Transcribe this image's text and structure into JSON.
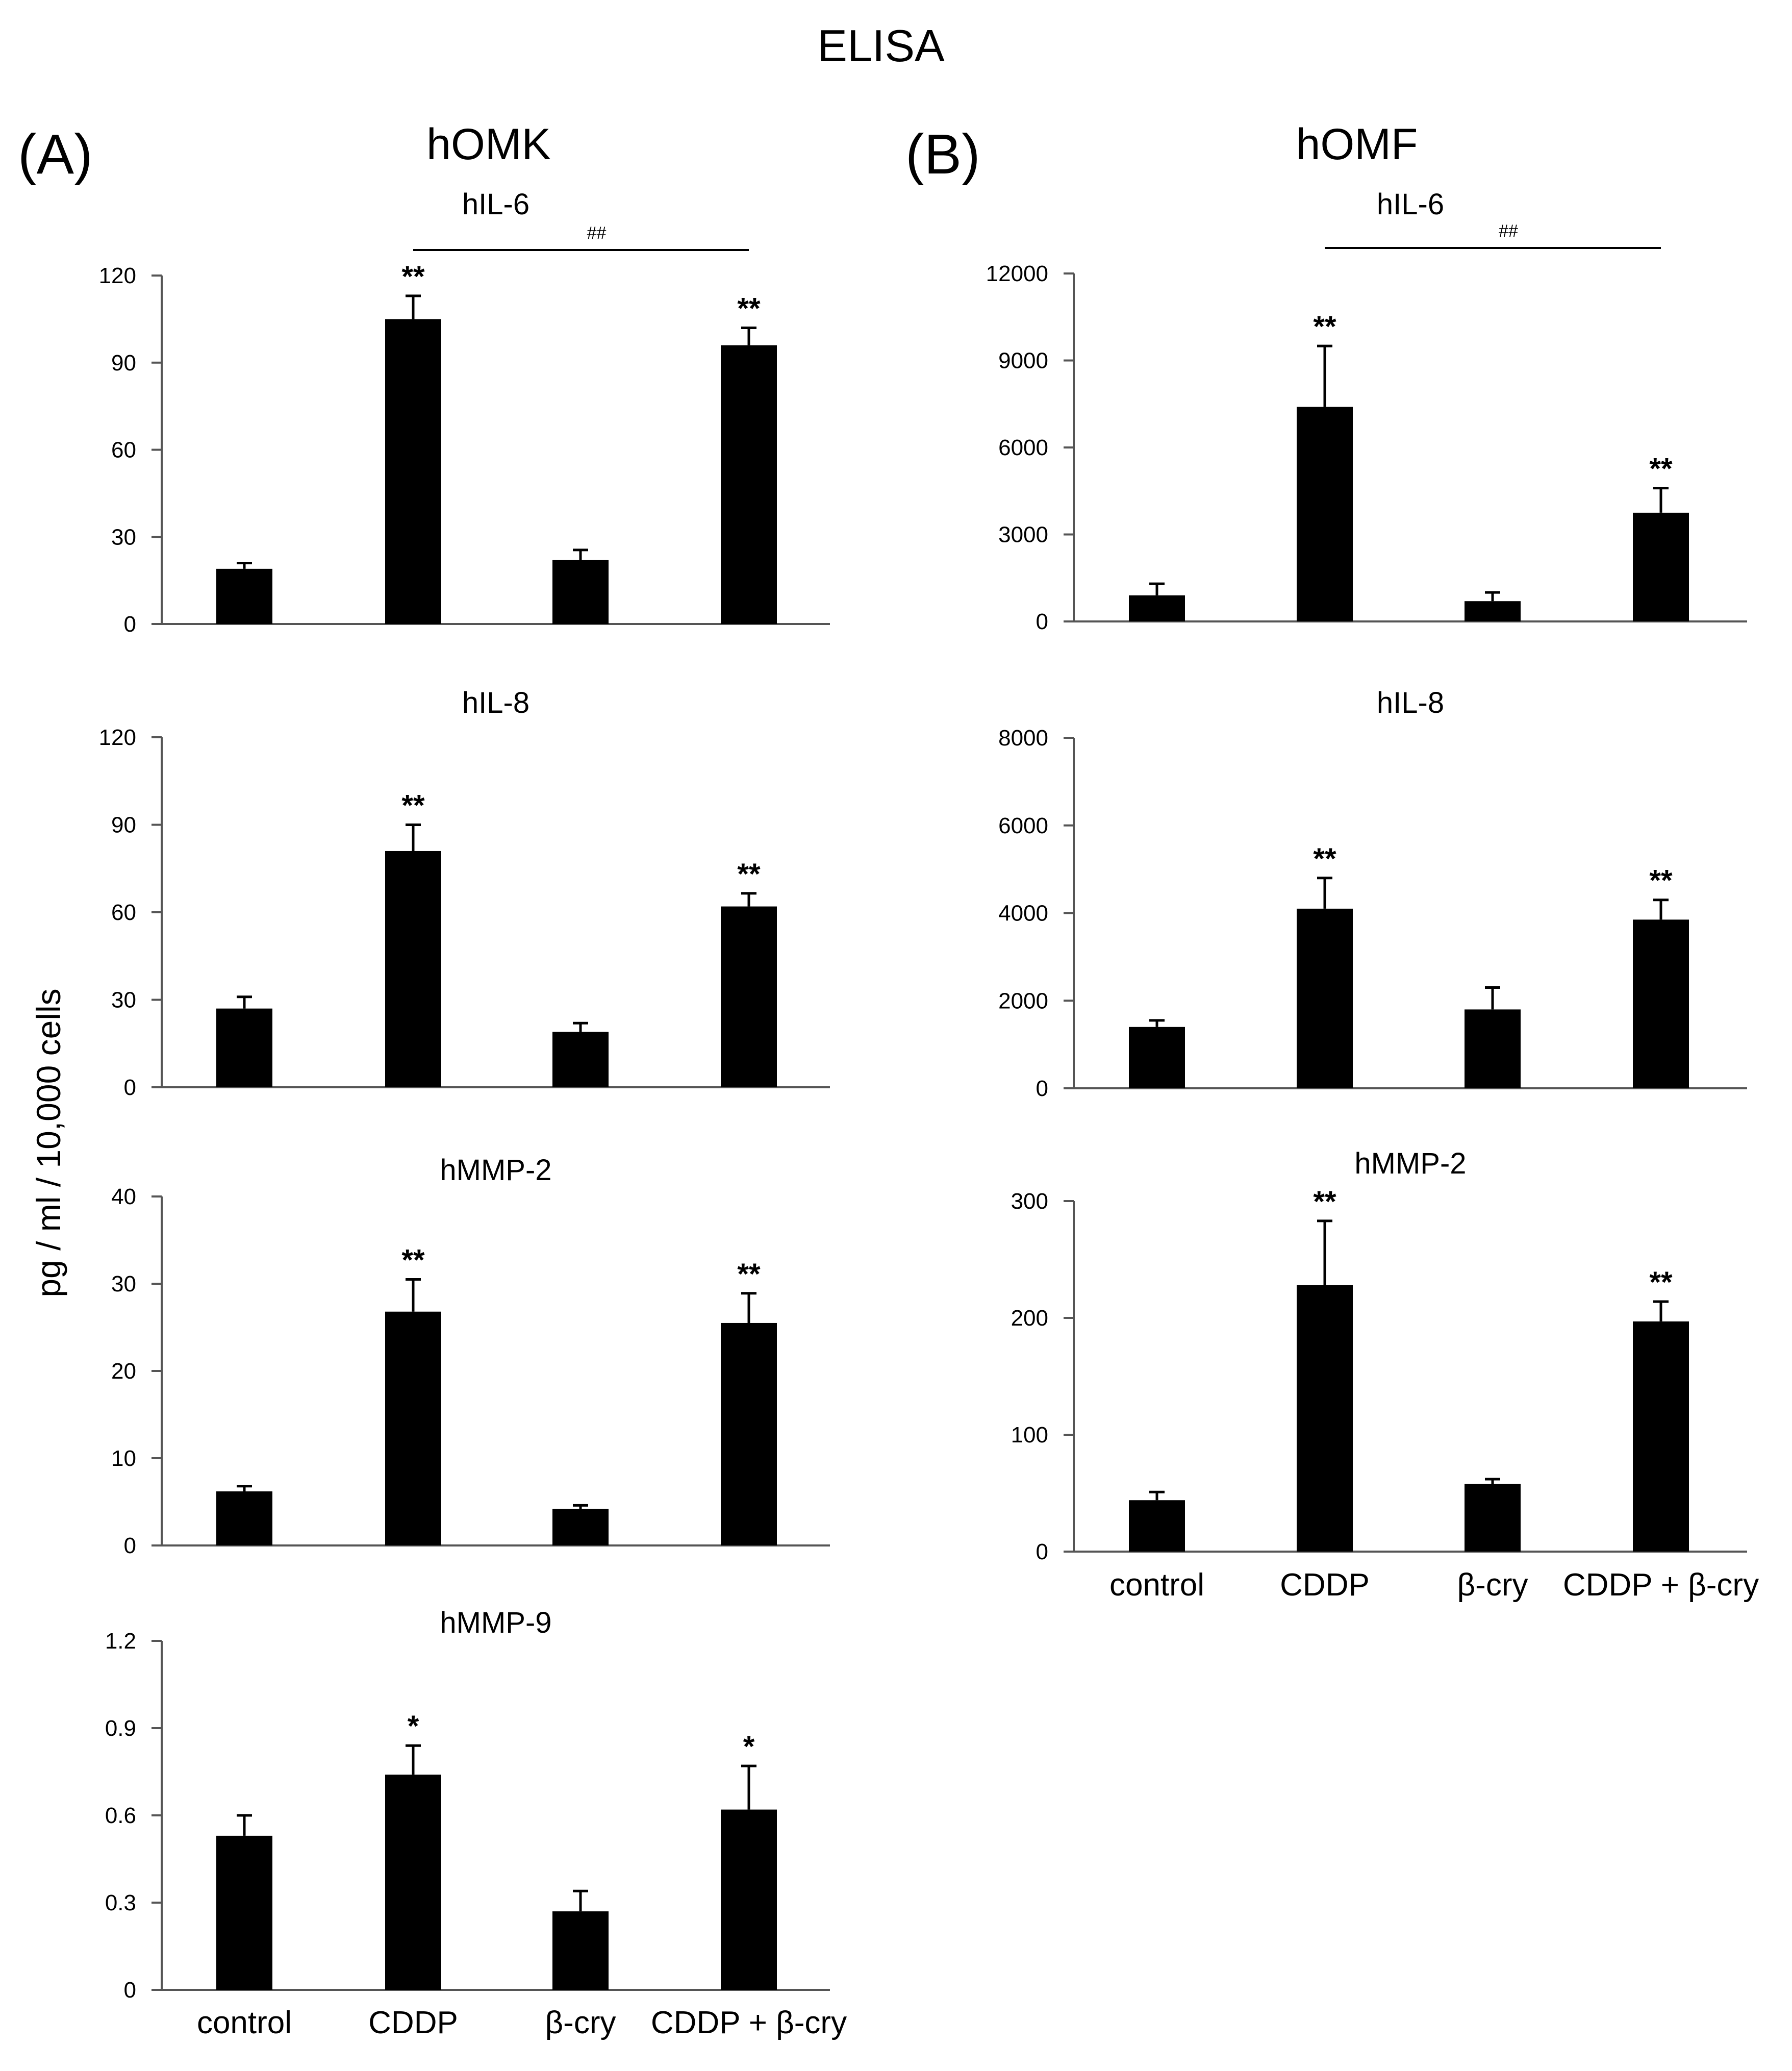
{
  "figure": {
    "title": "ELISA",
    "panel_a": {
      "label": "(A)",
      "cell": "hOMK"
    },
    "panel_b": {
      "label": "(B)",
      "cell": "hOMF"
    },
    "ylabel": "pg / ml / 10,000 cells",
    "bar_color": "#000000"
  },
  "chart_data": [
    {
      "id": "a-il6",
      "type": "bar",
      "panel": "hOMK",
      "title": "hIL-6",
      "categories": [
        "control",
        "CDDP",
        "β-cry",
        "CDDP + β-cry"
      ],
      "values": [
        19,
        105,
        22,
        96
      ],
      "errors": [
        2,
        8,
        3.5,
        6
      ],
      "significance": [
        "",
        "**",
        "",
        "**"
      ],
      "comparison": {
        "from": 1,
        "to": 3,
        "label": "##"
      },
      "ylim": [
        0,
        120
      ],
      "yticks": [
        0,
        30,
        60,
        90,
        120
      ],
      "ytick_labels": [
        "0",
        "30",
        "60",
        "90",
        "120"
      ],
      "xlabel": "",
      "ylabel": "pg / ml / 10,000 cells",
      "show_categories": false
    },
    {
      "id": "a-il8",
      "type": "bar",
      "panel": "hOMK",
      "title": "hIL-8",
      "categories": [
        "control",
        "CDDP",
        "β-cry",
        "CDDP + β-cry"
      ],
      "values": [
        27,
        81,
        19,
        62
      ],
      "errors": [
        4,
        9,
        3,
        4.5
      ],
      "significance": [
        "",
        "**",
        "",
        "**"
      ],
      "ylim": [
        0,
        120
      ],
      "yticks": [
        0,
        30,
        60,
        90,
        120
      ],
      "ytick_labels": [
        "0",
        "30",
        "60",
        "90",
        "120"
      ],
      "xlabel": "",
      "ylabel": "pg / ml / 10,000 cells",
      "show_categories": false
    },
    {
      "id": "a-mmp2",
      "type": "bar",
      "panel": "hOMK",
      "title": "hMMP-2",
      "categories": [
        "control",
        "CDDP",
        "β-cry",
        "CDDP + β-cry"
      ],
      "values": [
        6.2,
        26.8,
        4.2,
        25.5
      ],
      "errors": [
        0.6,
        3.7,
        0.4,
        3.4
      ],
      "significance": [
        "",
        "**",
        "",
        "**"
      ],
      "ylim": [
        0,
        40
      ],
      "yticks": [
        0,
        10,
        20,
        30,
        40
      ],
      "ytick_labels": [
        "0",
        "10",
        "20",
        "30",
        "40"
      ],
      "xlabel": "",
      "ylabel": "pg / ml / 10,000 cells",
      "show_categories": false
    },
    {
      "id": "a-mmp9",
      "type": "bar",
      "panel": "hOMK",
      "title": "hMMP-9",
      "categories": [
        "control",
        "CDDP",
        "β-cry",
        "CDDP + β-cry"
      ],
      "values": [
        0.53,
        0.74,
        0.27,
        0.62
      ],
      "errors": [
        0.07,
        0.1,
        0.07,
        0.15
      ],
      "significance": [
        "",
        "*",
        "",
        "*"
      ],
      "ylim": [
        0,
        1.2
      ],
      "yticks": [
        0,
        0.3,
        0.6,
        0.9,
        1.2
      ],
      "ytick_labels": [
        "0",
        "0.3",
        "0.6",
        "0.9",
        "1.2"
      ],
      "xlabel": "",
      "ylabel": "pg / ml / 10,000 cells",
      "show_categories": true
    },
    {
      "id": "b-il6",
      "type": "bar",
      "panel": "hOMF",
      "title": "hIL-6",
      "categories": [
        "control",
        "CDDP",
        "β-cry",
        "CDDP + β-cry"
      ],
      "values": [
        900,
        7400,
        700,
        3750
      ],
      "errors": [
        400,
        2100,
        300,
        850
      ],
      "significance": [
        "",
        "**",
        "",
        "**"
      ],
      "comparison": {
        "from": 1,
        "to": 3,
        "label": "##"
      },
      "ylim": [
        0,
        12000
      ],
      "yticks": [
        0,
        3000,
        6000,
        9000,
        12000
      ],
      "ytick_labels": [
        "0",
        "3000",
        "6000",
        "9000",
        "12000"
      ],
      "xlabel": "",
      "ylabel": "pg / ml / 10,000 cells",
      "show_categories": false
    },
    {
      "id": "b-il8",
      "type": "bar",
      "panel": "hOMF",
      "title": "hIL-8",
      "categories": [
        "control",
        "CDDP",
        "β-cry",
        "CDDP + β-cry"
      ],
      "values": [
        1400,
        4100,
        1800,
        3850
      ],
      "errors": [
        150,
        700,
        500,
        450
      ],
      "significance": [
        "",
        "**",
        "",
        "**"
      ],
      "ylim": [
        0,
        8000
      ],
      "yticks": [
        0,
        2000,
        4000,
        6000,
        8000
      ],
      "ytick_labels": [
        "0",
        "2000",
        "4000",
        "6000",
        "8000"
      ],
      "xlabel": "",
      "ylabel": "pg / ml / 10,000 cells",
      "show_categories": false
    },
    {
      "id": "b-mmp2",
      "type": "bar",
      "panel": "hOMF",
      "title": "hMMP-2",
      "categories": [
        "control",
        "CDDP",
        "β-cry",
        "CDDP + β-cry"
      ],
      "values": [
        44,
        228,
        58,
        197
      ],
      "errors": [
        7,
        55,
        4,
        17
      ],
      "significance": [
        "",
        "**",
        "",
        "**"
      ],
      "ylim": [
        0,
        300
      ],
      "yticks": [
        0,
        100,
        200,
        300
      ],
      "ytick_labels": [
        "0",
        "100",
        "200",
        "300"
      ],
      "xlabel": "",
      "ylabel": "pg / ml / 10,000 cells",
      "show_categories": true
    }
  ]
}
